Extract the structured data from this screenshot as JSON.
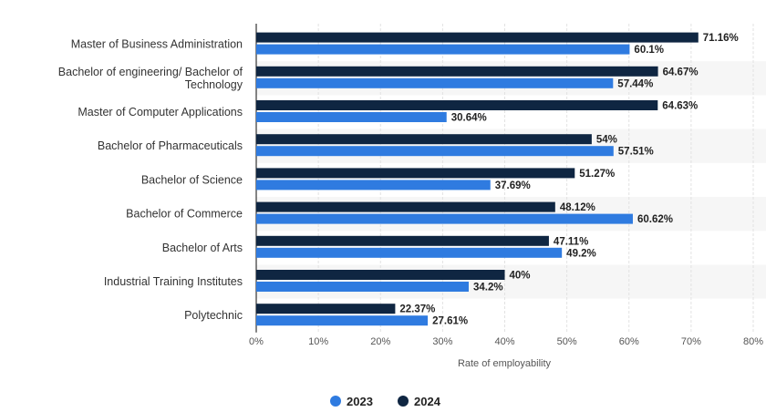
{
  "chart_data": {
    "type": "bar",
    "orientation": "horizontal",
    "categories": [
      [
        "Master of Business Administration"
      ],
      [
        "Bachelor of engineering/ Bachelor of",
        "Technology"
      ],
      [
        "Master of Computer Applications"
      ],
      [
        "Bachelor of Pharmaceuticals"
      ],
      [
        "Bachelor of Science"
      ],
      [
        "Bachelor of Commerce"
      ],
      [
        "Bachelor of Arts"
      ],
      [
        "Industrial Training Institutes"
      ],
      [
        "Polytechnic"
      ]
    ],
    "series": [
      {
        "name": "2024",
        "color": "#0f2642",
        "values": [
          71.16,
          64.67,
          64.63,
          54,
          51.27,
          48.12,
          47.11,
          40,
          22.37
        ],
        "labels": [
          "71.16%",
          "64.67%",
          "64.63%",
          "54%",
          "51.27%",
          "48.12%",
          "47.11%",
          "40%",
          "22.37%"
        ]
      },
      {
        "name": "2023",
        "color": "#2f7be0",
        "values": [
          60.1,
          57.44,
          30.64,
          57.51,
          37.69,
          60.62,
          49.2,
          34.2,
          27.61
        ],
        "labels": [
          "60.1%",
          "57.44%",
          "30.64%",
          "57.51%",
          "37.69%",
          "60.62%",
          "49.2%",
          "34.2%",
          "27.61%"
        ]
      }
    ],
    "xlim": [
      0,
      80
    ],
    "xticks": [
      "0%",
      "10%",
      "20%",
      "30%",
      "40%",
      "50%",
      "60%",
      "70%",
      "80%"
    ],
    "xlabel": "Rate of employability",
    "legend": {
      "placement": "bottom-center",
      "order": [
        "2023",
        "2024"
      ]
    },
    "grid": true
  }
}
